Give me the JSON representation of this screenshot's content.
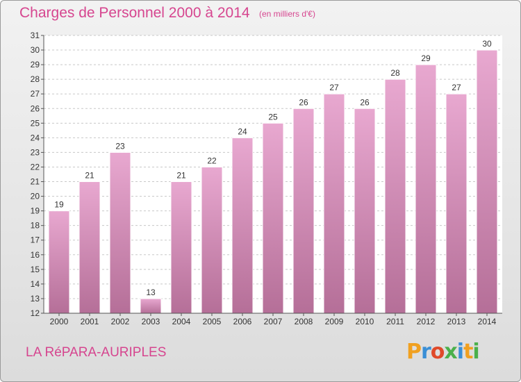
{
  "header": {
    "title": "Charges de Personnel 2000 à 2014",
    "unit": "(en milliers d'€)"
  },
  "footer": {
    "commune": "LA RéPARA-AURIPLES",
    "logo_letters": [
      "P",
      "r",
      "o",
      "x",
      "i",
      "t",
      "i"
    ],
    "logo_colors": [
      "#f0a020",
      "#3a8fd6",
      "#e04a2a",
      "#4bb04b",
      "#3a8fd6",
      "#f0a020",
      "#4bb04b"
    ]
  },
  "colors": {
    "title": "#d6458f",
    "bar_top": "#e8a8d0",
    "bar_bottom": "#b56f98",
    "axis_text": "#333333"
  },
  "chart_data": {
    "type": "bar",
    "title": "Charges de Personnel 2000 à 2014",
    "subtitle": "(en milliers d'€)",
    "categories": [
      "2000",
      "2001",
      "2002",
      "2003",
      "2004",
      "2005",
      "2006",
      "2007",
      "2008",
      "2009",
      "2010",
      "2011",
      "2012",
      "2013",
      "2014"
    ],
    "values": [
      19,
      21,
      23,
      13,
      21,
      22,
      24,
      25,
      26,
      27,
      26,
      28,
      29,
      27,
      30
    ],
    "ylim": [
      12,
      31
    ],
    "yticks": [
      12,
      13,
      14,
      15,
      16,
      17,
      18,
      19,
      20,
      21,
      22,
      23,
      24,
      25,
      26,
      27,
      28,
      29,
      30,
      31
    ],
    "grid": true,
    "legend": "none"
  }
}
